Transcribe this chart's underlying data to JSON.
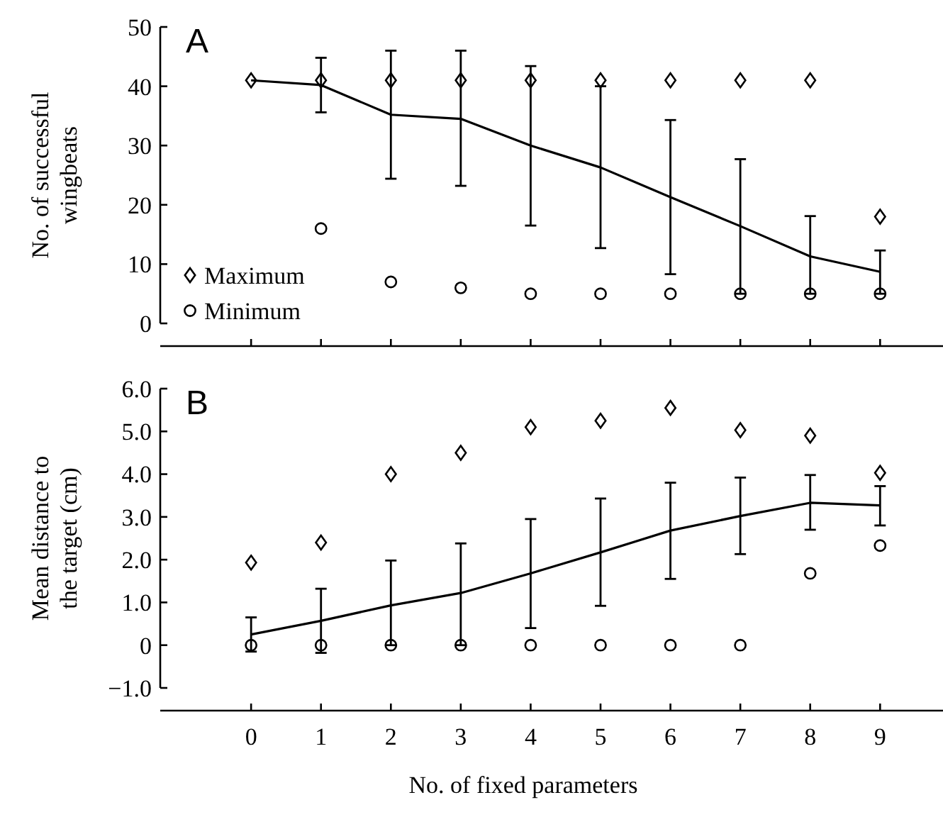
{
  "chart_data": [
    {
      "type": "line",
      "title": "A",
      "ylabel": "No. of successful wingbeats",
      "x": [
        0,
        1,
        2,
        3,
        4,
        5,
        6,
        7,
        8,
        9
      ],
      "xlim": [
        -1.3,
        9.9
      ],
      "xticks": [
        0,
        1,
        2,
        3,
        4,
        5,
        6,
        7,
        8,
        9
      ],
      "ylim": [
        0,
        50
      ],
      "yticks": [
        0,
        10,
        20,
        30,
        40,
        50
      ],
      "tick_labels": "y",
      "legend": "bottom left",
      "grid": false,
      "series": [
        {
          "color": "#000000",
          "marker": "none",
          "line_style": "solid",
          "values": [
            41,
            40.2,
            35.2,
            34.5,
            30,
            26.3,
            21.3,
            16.4,
            11.3,
            8.7
          ],
          "errors": [
            null,
            [
              35.6,
              44.8
            ],
            [
              24.4,
              46
            ],
            [
              23.2,
              46
            ],
            [
              16.5,
              43.4
            ],
            [
              12.7,
              40
            ],
            [
              8.3,
              34.3
            ],
            [
              5,
              27.7
            ],
            [
              5,
              18.1
            ],
            [
              5,
              12.3
            ]
          ]
        },
        {
          "type": "scatter",
          "name": "Maximum",
          "color": "#000000",
          "marker": "diamond",
          "values": [
            41,
            41,
            41,
            41,
            41,
            41,
            41,
            41,
            41,
            18
          ]
        },
        {
          "type": "scatter",
          "name": "Minimum",
          "color": "#000000",
          "marker": "circle",
          "values": [
            null,
            16,
            7,
            6,
            5,
            5,
            5,
            5,
            5,
            5
          ]
        }
      ]
    },
    {
      "type": "line",
      "title": "B",
      "xlabel": "No. of fixed parameters",
      "ylabel": "Mean distance to the target (cm)",
      "x": [
        0,
        1,
        2,
        3,
        4,
        5,
        6,
        7,
        8,
        9
      ],
      "xlim": [
        -1.3,
        9.9
      ],
      "xticks": [
        0,
        1,
        2,
        3,
        4,
        5,
        6,
        7,
        8,
        9
      ],
      "ylim": [
        -1,
        6
      ],
      "yticks": [
        {
          "value": -1,
          "label": "−1.0"
        },
        0,
        {
          "value": 1,
          "label": "1.0"
        },
        {
          "value": 2,
          "label": "2.0"
        },
        {
          "value": 3,
          "label": "3.0"
        },
        {
          "value": 4,
          "label": "4.0"
        },
        {
          "value": 5,
          "label": "5.0"
        },
        {
          "value": 6,
          "label": "6.0"
        }
      ],
      "legend": false,
      "grid": false,
      "series": [
        {
          "color": "#000000",
          "marker": "none",
          "line_style": "solid",
          "values": [
            0.25,
            0.57,
            0.93,
            1.22,
            1.68,
            2.17,
            2.68,
            3.02,
            3.33,
            3.27
          ],
          "errors": [
            [
              -0.15,
              0.65
            ],
            [
              -0.18,
              1.32
            ],
            [
              0,
              1.98
            ],
            [
              0,
              2.38
            ],
            [
              0.4,
              2.95
            ],
            [
              0.92,
              3.43
            ],
            [
              1.55,
              3.8
            ],
            [
              2.13,
              3.92
            ],
            [
              2.7,
              3.98
            ],
            [
              2.8,
              3.72
            ]
          ]
        },
        {
          "type": "scatter",
          "color": "#000000",
          "marker": "diamond",
          "values": [
            1.93,
            2.4,
            4.0,
            4.5,
            5.1,
            5.25,
            5.55,
            5.03,
            4.9,
            4.03
          ]
        },
        {
          "type": "scatter",
          "color": "#000000",
          "marker": "circle",
          "values": [
            0,
            0,
            0,
            0,
            0,
            0,
            0,
            0,
            1.68,
            2.33
          ]
        }
      ]
    }
  ]
}
